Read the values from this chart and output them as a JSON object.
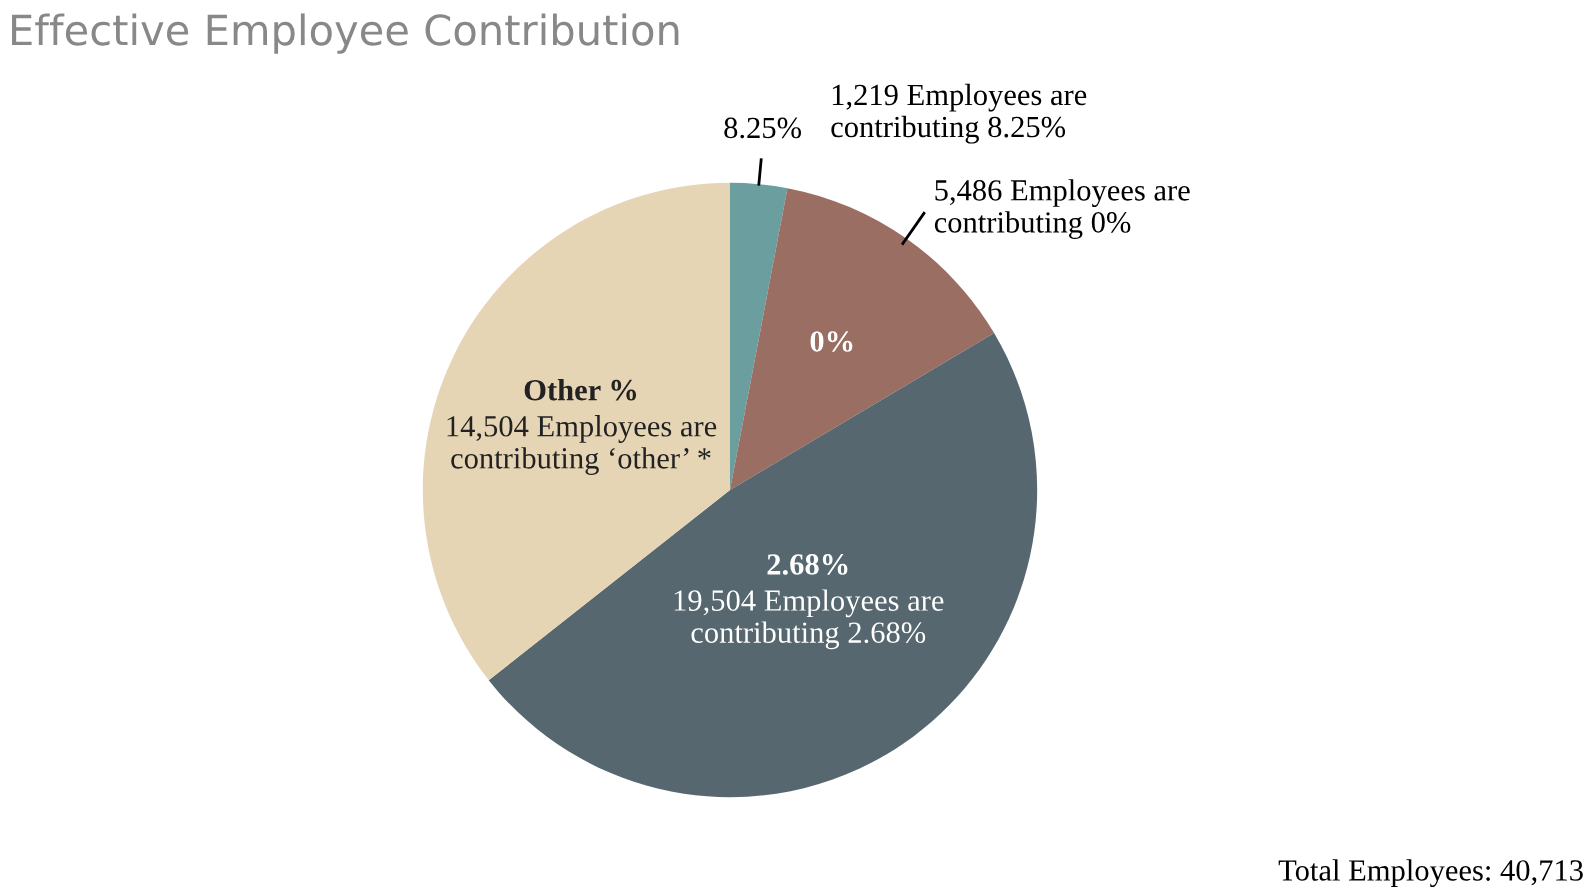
{
  "chart_data": {
    "type": "pie",
    "title": "Effective Employee Contribution",
    "categories": [
      "8.25%",
      "0%",
      "2.68%",
      "Other %"
    ],
    "values": [
      1219,
      5486,
      19504,
      14504
    ],
    "colors": [
      "#6b9e9f",
      "#9a6e63",
      "#56676f",
      "#e6d5b5"
    ],
    "value_labels": [
      "1,219 Employees are\ncontributing 8.25%",
      "5,486 Employees are\ncontributing 0%",
      "19,504 Employees are\ncontributing 2.68%",
      "14,504 Employees are\ncontributing ‘other’ *"
    ],
    "annotations": [
      "Total Employees: 40,713"
    ],
    "legend": false
  }
}
